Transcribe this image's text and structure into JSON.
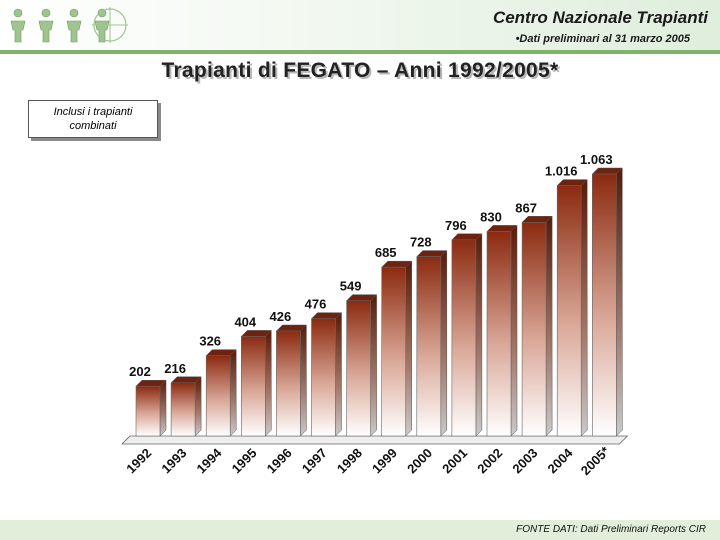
{
  "header": {
    "org_title": "Centro Nazionale Trapianti",
    "org_subtitle": "•Dati preliminari al 31 marzo 2005"
  },
  "chart_note": "Inclusi i trapianti combinati",
  "footer": {
    "source": "FONTE DATI: Dati Preliminari Reports CIR"
  },
  "colors": {
    "bar_dark": "#8b2a10",
    "bar_light": "#ffffff",
    "green_accent": "#7fb36a",
    "logo": "#9fc48f"
  },
  "icons": [
    "people-logo-icon"
  ],
  "chart_data": {
    "type": "bar",
    "title": "Trapianti di FEGATO – Anni 1992/2005*",
    "xlabel": "",
    "ylabel": "",
    "categories": [
      "1992",
      "1993",
      "1994",
      "1995",
      "1996",
      "1997",
      "1998",
      "1999",
      "2000",
      "2001",
      "2002",
      "2003",
      "2004",
      "2005*"
    ],
    "values": [
      202,
      216,
      326,
      404,
      426,
      476,
      549,
      685,
      728,
      796,
      830,
      867,
      1016,
      1063
    ],
    "value_labels": [
      "202",
      "216",
      "326",
      "404",
      "426",
      "476",
      "549",
      "685",
      "728",
      "796",
      "830",
      "867",
      "1.016",
      "1.063"
    ],
    "ylim": [
      0,
      1063
    ],
    "grid": false,
    "legend": "none",
    "style": "3d-gradient-columns"
  }
}
